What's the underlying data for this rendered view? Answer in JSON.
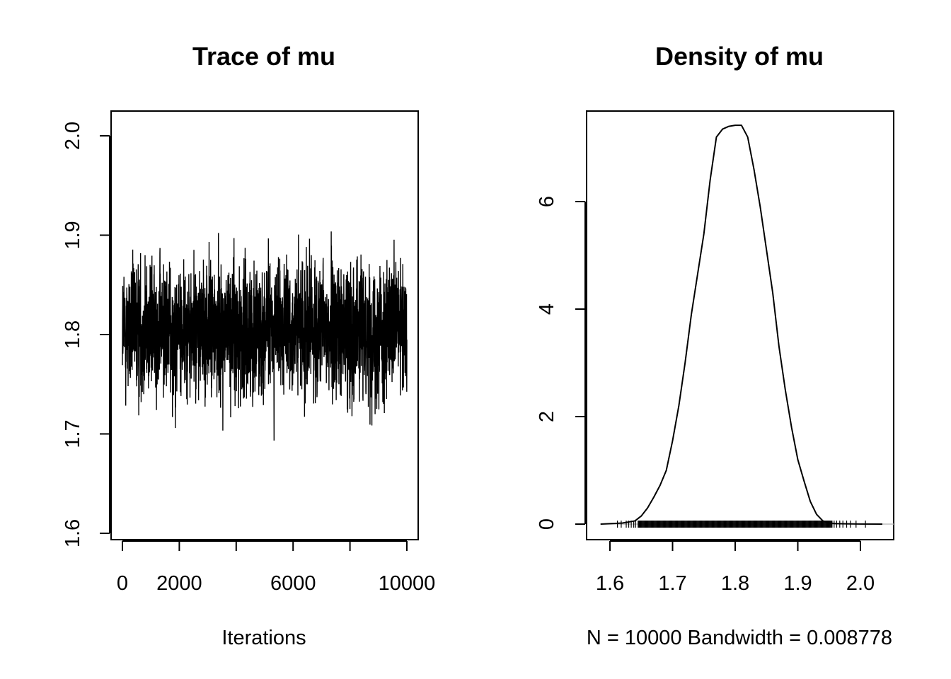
{
  "chart_data": [
    {
      "type": "line",
      "title": "Trace of mu",
      "xlabel": "Iterations",
      "ylabel": "",
      "xlim": [
        0,
        10000
      ],
      "ylim": [
        1.6,
        2.0
      ],
      "x_ticks": [
        0,
        2000,
        4000,
        6000,
        8000,
        10000
      ],
      "x_tick_labels": [
        "0",
        "2000",
        "",
        "6000",
        "",
        "10000"
      ],
      "y_ticks": [
        1.6,
        1.7,
        1.8,
        1.9,
        2.0
      ],
      "y_tick_labels": [
        "1.6",
        "1.7",
        "1.8",
        "1.9",
        "2.0"
      ],
      "series": [
        {
          "n_iterations": 10000,
          "mean": 1.805,
          "typical_band": [
            1.73,
            1.88
          ],
          "min": 1.608,
          "max": 2.008,
          "line_color": "#000000"
        }
      ]
    },
    {
      "type": "line",
      "title": "Density of mu",
      "xlabel": "N = 10000   Bandwidth = 0.008778",
      "ylabel": "",
      "xlim": [
        1.58,
        2.04
      ],
      "ylim": [
        0,
        7.4
      ],
      "x_ticks": [
        1.6,
        1.7,
        1.8,
        1.9,
        2.0
      ],
      "x_tick_labels": [
        "1.6",
        "1.7",
        "1.8",
        "1.9",
        "2.0"
      ],
      "y_ticks": [
        0,
        2,
        4,
        6
      ],
      "y_tick_labels": [
        "0",
        "2",
        "4",
        "6"
      ],
      "grid": false,
      "series": [
        {
          "x": [
            1.585,
            1.62,
            1.64,
            1.65,
            1.66,
            1.67,
            1.68,
            1.69,
            1.7,
            1.71,
            1.72,
            1.73,
            1.74,
            1.75,
            1.76,
            1.77,
            1.78,
            1.79,
            1.8,
            1.81,
            1.82,
            1.83,
            1.84,
            1.85,
            1.86,
            1.87,
            1.88,
            1.89,
            1.9,
            1.91,
            1.92,
            1.93,
            1.94,
            1.95,
            1.96,
            1.98,
            2.0,
            2.035
          ],
          "y": [
            0.0,
            0.02,
            0.06,
            0.15,
            0.3,
            0.5,
            0.72,
            1.0,
            1.55,
            2.2,
            3.0,
            3.9,
            4.65,
            5.4,
            6.4,
            7.2,
            7.35,
            7.4,
            7.42,
            7.42,
            7.2,
            6.6,
            5.9,
            5.1,
            4.3,
            3.3,
            2.5,
            1.8,
            1.2,
            0.8,
            0.42,
            0.18,
            0.06,
            0.02,
            0.01,
            0.005,
            0.002,
            0.0
          ],
          "line_color": "#000000"
        }
      ],
      "rug": {
        "dense_range": [
          1.645,
          1.955
        ],
        "sparse_points": [
          1.612,
          1.618,
          1.626,
          1.63,
          1.634,
          1.638,
          1.641,
          1.958,
          1.962,
          1.967,
          1.972,
          1.978,
          1.984,
          1.993,
          2.008
        ]
      }
    }
  ]
}
